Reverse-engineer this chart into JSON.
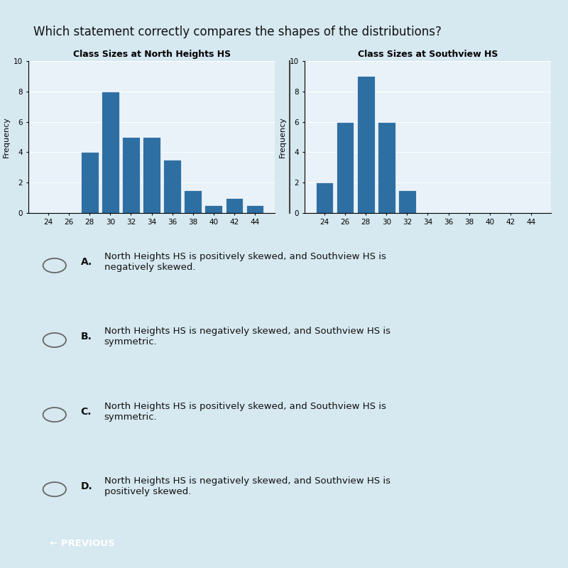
{
  "title": "Which statement correctly compares the shapes of the distributions?",
  "title_fontsize": 12,
  "chart1_title": "Class Sizes at North Heights HS",
  "chart2_title": "Class Sizes at Southview HS",
  "ylabel": "Frequency",
  "xlabel_ticks": [
    24,
    26,
    28,
    30,
    32,
    34,
    36,
    38,
    40,
    42,
    44
  ],
  "north_heights_values": [
    0,
    0,
    4,
    8,
    5,
    5,
    3.5,
    1.5,
    0.5,
    1,
    0.5
  ],
  "southview_values": [
    2,
    6,
    9,
    6,
    1.5,
    0,
    0,
    0,
    0,
    0,
    0
  ],
  "bar_color": "#2e6fa3",
  "ylim": [
    0,
    10
  ],
  "yticks": [
    0,
    2,
    4,
    6,
    8,
    10
  ],
  "choices": [
    {
      "label": "A.",
      "text": "North Heights HS is positively skewed, and Southview HS is\nnegatively skewed."
    },
    {
      "label": "B.",
      "text": "North Heights HS is negatively skewed, and Southview HS is\nsymmetric."
    },
    {
      "label": "C.",
      "text": "North Heights HS is positively skewed, and Southview HS is\nsymmetric."
    },
    {
      "label": "D.",
      "text": "North Heights HS is negatively skewed, and Southview HS is\npositively skewed."
    }
  ],
  "bg_color": "#d6e8f0",
  "chart_bg": "#e8f2f8",
  "divider_color": "#444444",
  "previous_btn_color": "#2a7abf",
  "previous_btn_text": "← PREVIOUS"
}
